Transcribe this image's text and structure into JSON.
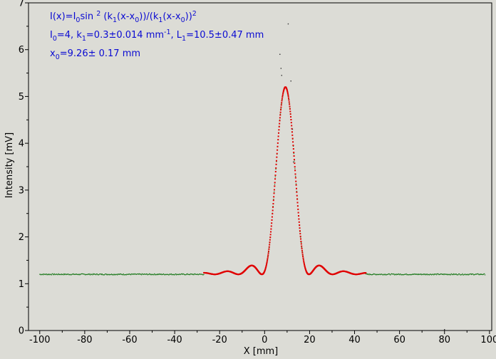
{
  "chart_data": {
    "type": "scatter",
    "xlabel": "X [mm]",
    "ylabel": "Intensity [mV]",
    "xlim": [
      -105,
      101
    ],
    "ylim": [
      0,
      7
    ],
    "xticks": [
      -100,
      -80,
      -60,
      -40,
      -20,
      0,
      20,
      40,
      60,
      80,
      100
    ],
    "yticks": [
      0,
      1,
      2,
      3,
      4,
      5,
      6,
      7
    ],
    "grid": false,
    "annotations": [
      {
        "parts": [
          [
            "I(x)=I",
            ""
          ],
          [
            "0",
            "sub"
          ],
          [
            "sin ",
            ""
          ],
          [
            "2",
            "sup"
          ],
          [
            " (k",
            ""
          ],
          [
            "1",
            "sub"
          ],
          [
            "(x-x",
            ""
          ],
          [
            "0",
            "sub"
          ],
          "))/(k",
          [
            "1",
            "sub"
          ],
          [
            "(x-x",
            ""
          ],
          [
            "0",
            "sub"
          ],
          [
            "))",
            ""
          ],
          [
            "2",
            "sup"
          ]
        ]
      },
      {
        "parts": [
          [
            "I",
            ""
          ],
          [
            "0",
            "sub"
          ],
          [
            "=4,  k",
            ""
          ],
          [
            "1",
            "sub"
          ],
          [
            "=0.3±0.014 mm",
            ""
          ],
          [
            "-1",
            "sup"
          ],
          [
            ",   L",
            ""
          ],
          [
            "1",
            "sub"
          ],
          [
            "=10.5±0.47 mm",
            ""
          ]
        ]
      },
      {
        "parts": [
          [
            "x",
            ""
          ],
          [
            "0",
            "sub"
          ],
          [
            "=9.26±   0.17 mm",
            ""
          ]
        ]
      }
    ],
    "series": [
      {
        "color": "#1e7a1e",
        "style": "points",
        "x_range": [
          -100,
          98
        ],
        "baseline": 1.2,
        "noise": 0.012
      },
      {
        "color": "#e00000",
        "style": "points",
        "x_range": [
          -27,
          45
        ],
        "model": {
          "I0": 4.0,
          "k1": 0.3,
          "x0": 9.26,
          "offset": 1.2
        }
      }
    ],
    "outliers": [
      {
        "x": 10.5,
        "y": 6.55
      },
      {
        "x": 6.8,
        "y": 5.9
      },
      {
        "x": 7.3,
        "y": 5.6
      },
      {
        "x": 7.6,
        "y": 5.45
      },
      {
        "x": 11.7,
        "y": 5.33
      },
      {
        "x": 12.4,
        "y": 4.3
      },
      {
        "x": 12.8,
        "y": 3.6
      },
      {
        "x": -75,
        "y": 0.0
      },
      {
        "x": 80,
        "y": 0.02
      }
    ]
  }
}
